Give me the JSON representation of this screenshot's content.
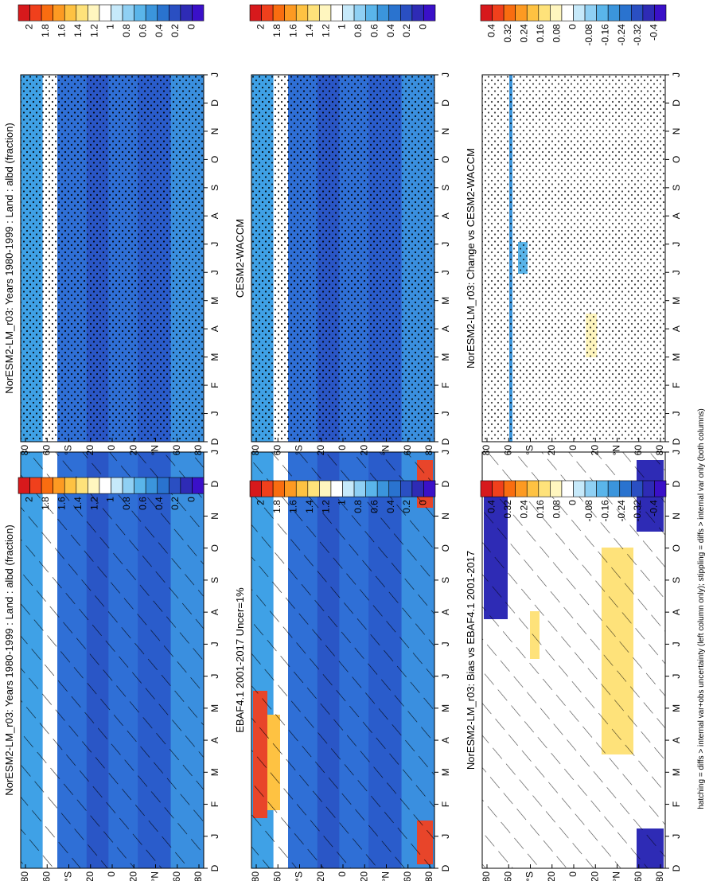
{
  "figure": {
    "footnote": "hatching = diffs > internal var+obs uncertainty (left column only); stippling = diffs > internal var only (both columns)"
  },
  "colorbars": {
    "fraction": {
      "labels": [
        "2",
        "1.8",
        "1.6",
        "1.4",
        "1.2",
        "1",
        "0.8",
        "0.6",
        "0.4",
        "0.2",
        "0"
      ],
      "colors": [
        "#d7191c",
        "#f0401c",
        "#f96d10",
        "#fd9a22",
        "#fec242",
        "#fee27a",
        "#fff6bf",
        "#ffffff",
        "#c6e9fa",
        "#8fd0f4",
        "#5ab5ea",
        "#3b95dc",
        "#2a73cf",
        "#2a4fc2",
        "#2e2bb5",
        "#3a10c8"
      ]
    },
    "difference": {
      "labels": [
        "0.4",
        "0.32",
        "0.24",
        "0.16",
        "0.08",
        "0",
        "-0.08",
        "-0.16",
        "-0.24",
        "-0.32",
        "-0.4"
      ],
      "colors": [
        "#d7191c",
        "#f0401c",
        "#f96d10",
        "#fd9a22",
        "#fec242",
        "#fee27a",
        "#fff6bf",
        "#ffffff",
        "#c6e9fa",
        "#8fd0f4",
        "#5ab5ea",
        "#3b95dc",
        "#2a73cf",
        "#2a4fc2",
        "#2e2bb5",
        "#3a10c8"
      ]
    }
  },
  "chart_data": [
    {
      "type": "heatmap",
      "panel": "top-left",
      "title": "NorESM2-LM_r03: Years 1980-1999 : Land : albd (fraction)",
      "x_ticks": [
        "D",
        "J",
        "F",
        "M",
        "A",
        "M",
        "J",
        "J",
        "A",
        "S",
        "O",
        "N",
        "D",
        "J"
      ],
      "y_ticks": [
        "80",
        "60",
        "°N",
        "20",
        "0",
        "20",
        "°S",
        "60",
        "80"
      ],
      "colorbar": "fraction",
      "overlay": "hatching",
      "dominant_value": "0.2-0.4"
    },
    {
      "type": "heatmap",
      "panel": "top-right",
      "title": "NorESM2-LM_r03: Years 1980-1999 : Land : albd (fraction)",
      "x_ticks": [
        "D",
        "J",
        "F",
        "M",
        "A",
        "M",
        "J",
        "J",
        "A",
        "S",
        "O",
        "N",
        "D",
        "J"
      ],
      "y_ticks": [
        "80",
        "60",
        "°N",
        "20",
        "0",
        "20",
        "°S",
        "60",
        "80"
      ],
      "colorbar": "fraction",
      "overlay": "stippling",
      "dominant_value": "0.2-0.4"
    },
    {
      "type": "heatmap",
      "panel": "middle-left",
      "title": "EBAF4.1 2001-2017 Uncer=1%",
      "x_ticks": [
        "D",
        "J",
        "F",
        "M",
        "A",
        "M",
        "J",
        "J",
        "A",
        "S",
        "O",
        "N",
        "D",
        "J"
      ],
      "y_ticks": [
        "80",
        "60",
        "°N",
        "20",
        "0",
        "20",
        "°S",
        "60",
        "80"
      ],
      "colorbar": "fraction",
      "overlay": "hatching",
      "dominant_value": "0.2-0.4"
    },
    {
      "type": "heatmap",
      "panel": "middle-right",
      "title": "CESM2-WACCM",
      "x_ticks": [
        "D",
        "J",
        "F",
        "M",
        "A",
        "M",
        "J",
        "J",
        "A",
        "S",
        "O",
        "N",
        "D",
        "J"
      ],
      "y_ticks": [
        "80",
        "60",
        "°N",
        "20",
        "0",
        "20",
        "°S",
        "60",
        "80"
      ],
      "colorbar": "fraction",
      "overlay": "stippling",
      "dominant_value": "0.2-0.4"
    },
    {
      "type": "heatmap",
      "panel": "bottom-left",
      "title": "NorESM2-LM_r03: Bias vs EBAF4.1 2001-2017",
      "x_ticks": [
        "D",
        "J",
        "F",
        "M",
        "A",
        "M",
        "J",
        "J",
        "A",
        "S",
        "O",
        "N",
        "D",
        "J"
      ],
      "y_ticks": [
        "80",
        "60",
        "°N",
        "20",
        "0",
        "20",
        "°S",
        "60",
        "80"
      ],
      "colorbar": "difference",
      "overlay": "hatching",
      "dominant_value": "near 0"
    },
    {
      "type": "heatmap",
      "panel": "bottom-right",
      "title": "NorESM2-LM_r03: Change vs CESM2-WACCM",
      "x_ticks": [
        "D",
        "J",
        "F",
        "M",
        "A",
        "M",
        "J",
        "J",
        "A",
        "S",
        "O",
        "N",
        "D",
        "J"
      ],
      "y_ticks": [
        "80",
        "60",
        "°N",
        "20",
        "0",
        "20",
        "°S",
        "60",
        "80"
      ],
      "colorbar": "difference",
      "overlay": "stippling",
      "dominant_value": "near 0"
    }
  ]
}
